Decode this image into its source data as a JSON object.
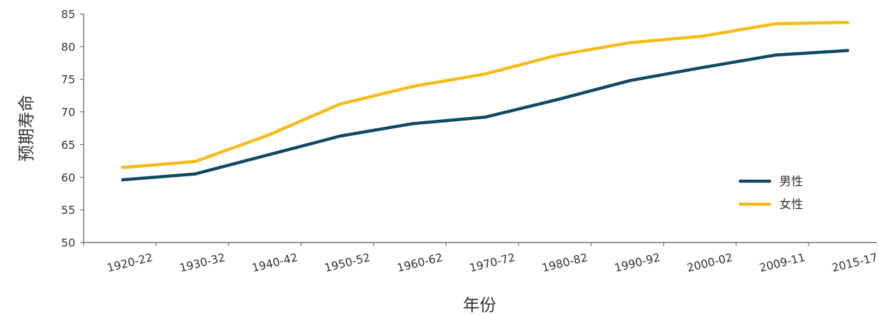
{
  "chart_data": {
    "type": "line",
    "xlabel": "年份",
    "ylabel": "预期寿命",
    "categories": [
      "1920-22",
      "1930-32",
      "1940-42",
      "1950-52",
      "1960-62",
      "1970-72",
      "1980-82",
      "1990-92",
      "2000-02",
      "2009-11",
      "2015-17"
    ],
    "ylim": [
      50,
      85
    ],
    "yticks": [
      50,
      55,
      60,
      65,
      70,
      75,
      80,
      85
    ],
    "grid": false,
    "legend_position": "right",
    "series": [
      {
        "name": "男性",
        "color": "#0d4a63",
        "values": [
          59.6,
          60.5,
          63.4,
          66.3,
          68.2,
          69.2,
          71.9,
          74.8,
          76.8,
          78.7,
          79.4
        ]
      },
      {
        "name": "女性",
        "color": "#f5bb17",
        "values": [
          61.5,
          62.4,
          66.4,
          71.2,
          73.9,
          75.8,
          78.7,
          80.6,
          81.6,
          83.5,
          83.7
        ]
      }
    ]
  }
}
